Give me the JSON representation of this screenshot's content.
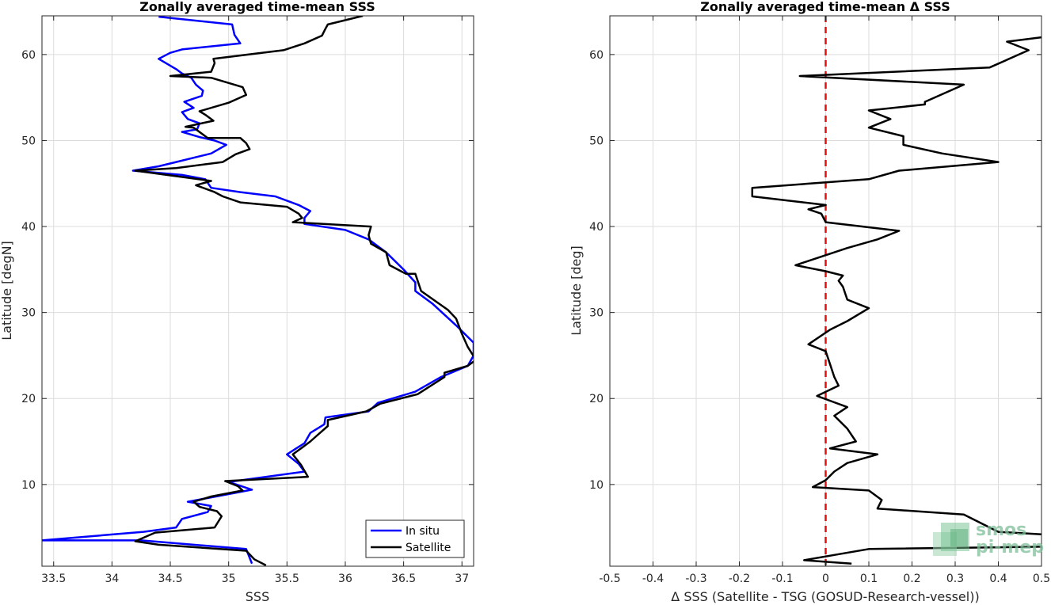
{
  "chart_data": [
    {
      "type": "line",
      "title": "Zonally averaged time-mean SSS",
      "xlabel": "SSS",
      "ylabel": "Latitude [degN]",
      "xlim": [
        33.4,
        37.1
      ],
      "ylim": [
        0.5,
        64.5
      ],
      "xticks": [
        33.5,
        34,
        34.5,
        35,
        35.5,
        36,
        36.5,
        37
      ],
      "xtick_labels": [
        "33.5",
        "34",
        "34.5",
        "35",
        "35.5",
        "36",
        "36.5",
        "37"
      ],
      "yticks": [
        10,
        20,
        30,
        40,
        50,
        60
      ],
      "ytick_labels": [
        "10",
        "20",
        "30",
        "40",
        "50",
        "60"
      ],
      "grid": true,
      "legend": "bottom-right",
      "series": [
        {
          "name": "In situ",
          "color": "#0000ff",
          "points": [
            [
              35.2,
              0.8
            ],
            [
              35.15,
              2.5
            ],
            [
              34.25,
              3.5
            ],
            [
              33.4,
              3.5
            ],
            [
              34.27,
              4.5
            ],
            [
              34.55,
              5.0
            ],
            [
              34.6,
              6.0
            ],
            [
              34.82,
              6.8
            ],
            [
              34.85,
              7.5
            ],
            [
              34.65,
              8.0
            ],
            [
              34.85,
              8.5
            ],
            [
              35.2,
              9.4
            ],
            [
              35.0,
              10.3
            ],
            [
              35.65,
              11.5
            ],
            [
              35.6,
              12.4
            ],
            [
              35.5,
              13.5
            ],
            [
              35.58,
              14.2
            ],
            [
              35.65,
              14.8
            ],
            [
              35.7,
              16.0
            ],
            [
              35.82,
              17.0
            ],
            [
              35.83,
              17.8
            ],
            [
              36.2,
              18.5
            ],
            [
              36.28,
              19.5
            ],
            [
              36.6,
              20.8
            ],
            [
              36.82,
              22.5
            ],
            [
              37.05,
              23.8
            ],
            [
              37.1,
              25.0
            ],
            [
              37.1,
              26.5
            ],
            [
              36.95,
              28.5
            ],
            [
              36.75,
              31.0
            ],
            [
              36.6,
              32.5
            ],
            [
              36.6,
              33.5
            ],
            [
              36.5,
              35.0
            ],
            [
              36.35,
              37.0
            ],
            [
              36.2,
              38.5
            ],
            [
              36.0,
              39.6
            ],
            [
              35.65,
              40.3
            ],
            [
              35.65,
              41.0
            ],
            [
              35.7,
              41.8
            ],
            [
              35.6,
              42.5
            ],
            [
              35.4,
              43.5
            ],
            [
              35.1,
              44.0
            ],
            [
              34.85,
              44.5
            ],
            [
              34.8,
              45.5
            ],
            [
              34.6,
              46.0
            ],
            [
              34.18,
              46.5
            ],
            [
              34.4,
              47.0
            ],
            [
              34.55,
              47.5
            ],
            [
              34.85,
              48.5
            ],
            [
              34.98,
              49.5
            ],
            [
              34.88,
              50.0
            ],
            [
              34.75,
              50.4
            ],
            [
              34.6,
              51.0
            ],
            [
              34.73,
              51.3
            ],
            [
              34.75,
              52.0
            ],
            [
              34.65,
              52.5
            ],
            [
              34.6,
              53.3
            ],
            [
              34.7,
              53.8
            ],
            [
              34.62,
              54.5
            ],
            [
              34.77,
              55.2
            ],
            [
              34.78,
              55.8
            ],
            [
              34.72,
              56.5
            ],
            [
              34.68,
              57.3
            ],
            [
              34.6,
              57.8
            ],
            [
              34.55,
              58.3
            ],
            [
              34.4,
              59.5
            ],
            [
              34.5,
              60.2
            ],
            [
              34.6,
              60.6
            ],
            [
              35.1,
              61.3
            ],
            [
              35.05,
              62.3
            ],
            [
              35.03,
              63.5
            ],
            [
              34.4,
              64.4
            ]
          ]
        },
        {
          "name": "Satellite",
          "color": "#000000",
          "points": [
            [
              35.32,
              0.6
            ],
            [
              35.22,
              1.3
            ],
            [
              35.15,
              2.3
            ],
            [
              34.4,
              3.0
            ],
            [
              34.2,
              3.4
            ],
            [
              34.37,
              4.4
            ],
            [
              34.88,
              5.0
            ],
            [
              34.94,
              6.3
            ],
            [
              34.9,
              6.9
            ],
            [
              34.75,
              7.4
            ],
            [
              34.7,
              8.0
            ],
            [
              34.85,
              8.6
            ],
            [
              35.12,
              9.3
            ],
            [
              35.08,
              9.8
            ],
            [
              34.97,
              10.4
            ],
            [
              35.68,
              10.9
            ],
            [
              35.62,
              12.3
            ],
            [
              35.55,
              13.5
            ],
            [
              35.6,
              14.0
            ],
            [
              35.7,
              15.0
            ],
            [
              35.75,
              15.6
            ],
            [
              35.85,
              16.8
            ],
            [
              35.85,
              17.5
            ],
            [
              36.18,
              18.5
            ],
            [
              36.3,
              19.4
            ],
            [
              36.62,
              20.5
            ],
            [
              36.85,
              22.5
            ],
            [
              36.85,
              23.0
            ],
            [
              37.05,
              23.8
            ],
            [
              37.12,
              24.5
            ],
            [
              37.05,
              26.0
            ],
            [
              37.0,
              27.5
            ],
            [
              36.95,
              29.3
            ],
            [
              36.88,
              30.3
            ],
            [
              36.65,
              32.5
            ],
            [
              36.6,
              34.5
            ],
            [
              36.52,
              34.5
            ],
            [
              36.38,
              35.5
            ],
            [
              36.35,
              37.0
            ],
            [
              36.22,
              38.0
            ],
            [
              36.2,
              39.0
            ],
            [
              36.22,
              40.0
            ],
            [
              35.55,
              40.5
            ],
            [
              35.63,
              41.0
            ],
            [
              35.6,
              41.5
            ],
            [
              35.5,
              42.3
            ],
            [
              35.1,
              42.8
            ],
            [
              34.95,
              43.5
            ],
            [
              34.88,
              44.0
            ],
            [
              34.72,
              44.8
            ],
            [
              34.85,
              45.3
            ],
            [
              34.2,
              46.5
            ],
            [
              34.55,
              46.8
            ],
            [
              34.95,
              47.5
            ],
            [
              35.06,
              48.4
            ],
            [
              35.18,
              49.0
            ],
            [
              35.15,
              49.7
            ],
            [
              35.1,
              50.3
            ],
            [
              34.82,
              50.3
            ],
            [
              34.7,
              51.5
            ],
            [
              34.63,
              51.6
            ],
            [
              34.87,
              52.3
            ],
            [
              34.8,
              53.0
            ],
            [
              34.75,
              53.4
            ],
            [
              35.0,
              54.4
            ],
            [
              35.15,
              55.3
            ],
            [
              35.12,
              56.2
            ],
            [
              34.85,
              57.3
            ],
            [
              34.5,
              57.5
            ],
            [
              34.85,
              58.0
            ],
            [
              34.88,
              59.0
            ],
            [
              34.87,
              59.5
            ],
            [
              35.47,
              60.5
            ],
            [
              35.65,
              61.3
            ],
            [
              35.8,
              62.2
            ],
            [
              35.83,
              63.0
            ],
            [
              35.85,
              63.5
            ],
            [
              36.15,
              64.5
            ]
          ]
        }
      ]
    },
    {
      "type": "line",
      "title": "Zonally averaged time-mean Δ SSS",
      "xlabel": "Δ SSS (Satellite - TSG (GOSUD-Research-vessel))",
      "ylabel": "Latitude [deg]",
      "xlim": [
        -0.5,
        0.5
      ],
      "ylim": [
        0.5,
        64.5
      ],
      "xticks": [
        -0.5,
        -0.4,
        -0.3,
        -0.2,
        -0.1,
        0,
        0.1,
        0.2,
        0.3,
        0.4,
        0.5
      ],
      "xtick_labels": [
        "-0.5",
        "-0.4",
        "-0.3",
        "-0.2",
        "-0.1",
        "0",
        "0.1",
        "0.2",
        "0.3",
        "0.4",
        "0.5"
      ],
      "yticks": [
        10,
        20,
        30,
        40,
        50,
        60
      ],
      "ytick_labels": [
        "10",
        "20",
        "30",
        "40",
        "50",
        "60"
      ],
      "grid": true,
      "zero_line_color": "#dd1111",
      "series": [
        {
          "color": "#000000",
          "points": [
            [
              0.06,
              0.8
            ],
            [
              -0.05,
              1.2
            ],
            [
              0.1,
              2.5
            ],
            [
              0.55,
              2.8
            ],
            [
              0.5,
              4.2
            ],
            [
              0.4,
              4.5
            ],
            [
              0.32,
              6.5
            ],
            [
              0.12,
              7.2
            ],
            [
              0.13,
              8.2
            ],
            [
              0.1,
              9.3
            ],
            [
              -0.03,
              9.7
            ],
            [
              0.0,
              10.5
            ],
            [
              0.02,
              11.5
            ],
            [
              0.05,
              12.5
            ],
            [
              0.12,
              13.5
            ],
            [
              0.01,
              14.2
            ],
            [
              0.07,
              15.0
            ],
            [
              0.05,
              16.5
            ],
            [
              0.02,
              18.0
            ],
            [
              0.05,
              19.0
            ],
            [
              -0.02,
              20.3
            ],
            [
              0.03,
              21.5
            ],
            [
              0.02,
              22.5
            ],
            [
              0.01,
              24.0
            ],
            [
              0.0,
              25.5
            ],
            [
              -0.04,
              26.3
            ],
            [
              0.01,
              28.0
            ],
            [
              0.05,
              29.0
            ],
            [
              0.1,
              30.5
            ],
            [
              0.05,
              31.5
            ],
            [
              0.04,
              33.0
            ],
            [
              0.03,
              33.7
            ],
            [
              0.04,
              34.3
            ],
            [
              0.0,
              34.8
            ],
            [
              -0.07,
              35.5
            ],
            [
              0.05,
              37.5
            ],
            [
              0.12,
              38.5
            ],
            [
              0.17,
              39.5
            ],
            [
              0.0,
              40.5
            ],
            [
              -0.01,
              41.5
            ],
            [
              -0.04,
              42.0
            ],
            [
              0.0,
              42.5
            ],
            [
              -0.17,
              43.5
            ],
            [
              -0.17,
              44.5
            ],
            [
              0.1,
              45.5
            ],
            [
              0.17,
              46.5
            ],
            [
              0.4,
              47.5
            ],
            [
              0.27,
              48.5
            ],
            [
              0.18,
              49.5
            ],
            [
              0.18,
              50.5
            ],
            [
              0.1,
              51.5
            ],
            [
              0.15,
              52.5
            ],
            [
              0.1,
              53.5
            ],
            [
              0.23,
              54.2
            ],
            [
              0.23,
              54.5
            ],
            [
              0.32,
              56.5
            ],
            [
              -0.06,
              57.5
            ],
            [
              0.38,
              58.5
            ],
            [
              0.47,
              60.5
            ],
            [
              0.42,
              61.5
            ],
            [
              0.5,
              62.0
            ]
          ]
        }
      ]
    }
  ],
  "legend": {
    "entries": [
      {
        "label": "In situ",
        "color": "#0000ff"
      },
      {
        "label": "Satellite",
        "color": "#000000"
      }
    ]
  },
  "watermark": {
    "line1": "smos",
    "line2": "pi-mep"
  }
}
